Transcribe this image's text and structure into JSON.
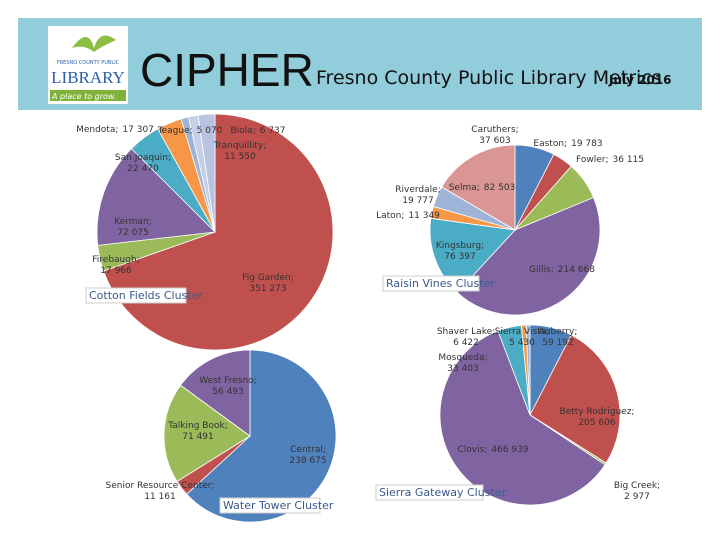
{
  "header": {
    "logo_top": "FRESNO COUNTY PUBLIC",
    "logo_main": "LIBRARY",
    "logo_tagline": "A place to grow.",
    "title": "CIPHER",
    "subtitle": "Fresno County Public Library Metrics",
    "date": "July 2016"
  },
  "chart_data": [
    {
      "type": "pie",
      "title": "Cotton Fields Cluster",
      "label_separator": ";",
      "categories": [
        "Fig Garden",
        "Firebaugh",
        "Kerman",
        "San Joaquin",
        "Mendota",
        "Teague",
        "Biola",
        "Tranquillity"
      ],
      "values": [
        351273,
        17966,
        72075,
        22470,
        17307,
        5070,
        6737,
        11550
      ],
      "value_labels": [
        "351 273",
        "17 966",
        "72 075",
        "22 470",
        "17 307",
        "5 070",
        "6 737",
        "11 550"
      ],
      "colors": [
        "#c0504d",
        "#9bbb59",
        "#8064a2",
        "#4bacc6",
        "#f79646",
        "#9eb3d8",
        "#c5cfe6",
        "#b7c3e0"
      ]
    },
    {
      "type": "pie",
      "title": "Raisin Vines Cluster",
      "label_separator": ";",
      "categories": [
        "Caruthers",
        "Easton",
        "Fowler",
        "Gillis",
        "Kingsburg",
        "Laton",
        "Riverdale",
        "Selma"
      ],
      "values": [
        37603,
        19783,
        36115,
        214668,
        76397,
        11349,
        19777,
        82503
      ],
      "value_labels": [
        "37 603",
        "19 783",
        "36 115",
        "214 668",
        "76 397",
        "11 349",
        "19 777",
        "82 503"
      ],
      "colors": [
        "#4f81bd",
        "#c0504d",
        "#9bbb59",
        "#8064a2",
        "#4bacc6",
        "#f79646",
        "#9eb3d8",
        "#d99694"
      ]
    },
    {
      "type": "pie",
      "title": "Sierra Gateway Cluster",
      "label_separator": ";",
      "categories": [
        "Auberry",
        "Betty Rodriguez",
        "Big Creek",
        "Clovis",
        "Mosqueda",
        "Shaver Lake",
        "Sierra Vista"
      ],
      "values": [
        59192,
        205606,
        2977,
        466939,
        33403,
        6422,
        5430
      ],
      "value_labels": [
        "59 192",
        "205 606",
        "2 977",
        "466 939",
        "33 403",
        "6 422",
        "5 430"
      ],
      "colors": [
        "#4f81bd",
        "#c0504d",
        "#9bbb59",
        "#8064a2",
        "#4bacc6",
        "#f79646",
        "#9eb3d8"
      ]
    },
    {
      "type": "pie",
      "title": "Water Tower Cluster",
      "label_separator": ";",
      "categories": [
        "Central",
        "Senior Resource Center",
        "Talking Book",
        "West Fresno"
      ],
      "values": [
        238675,
        11161,
        71491,
        56493
      ],
      "value_labels": [
        "238 675",
        "11 161",
        "71 491",
        "56 493"
      ],
      "colors": [
        "#4f81bd",
        "#c0504d",
        "#9bbb59",
        "#8064a2"
      ]
    }
  ]
}
